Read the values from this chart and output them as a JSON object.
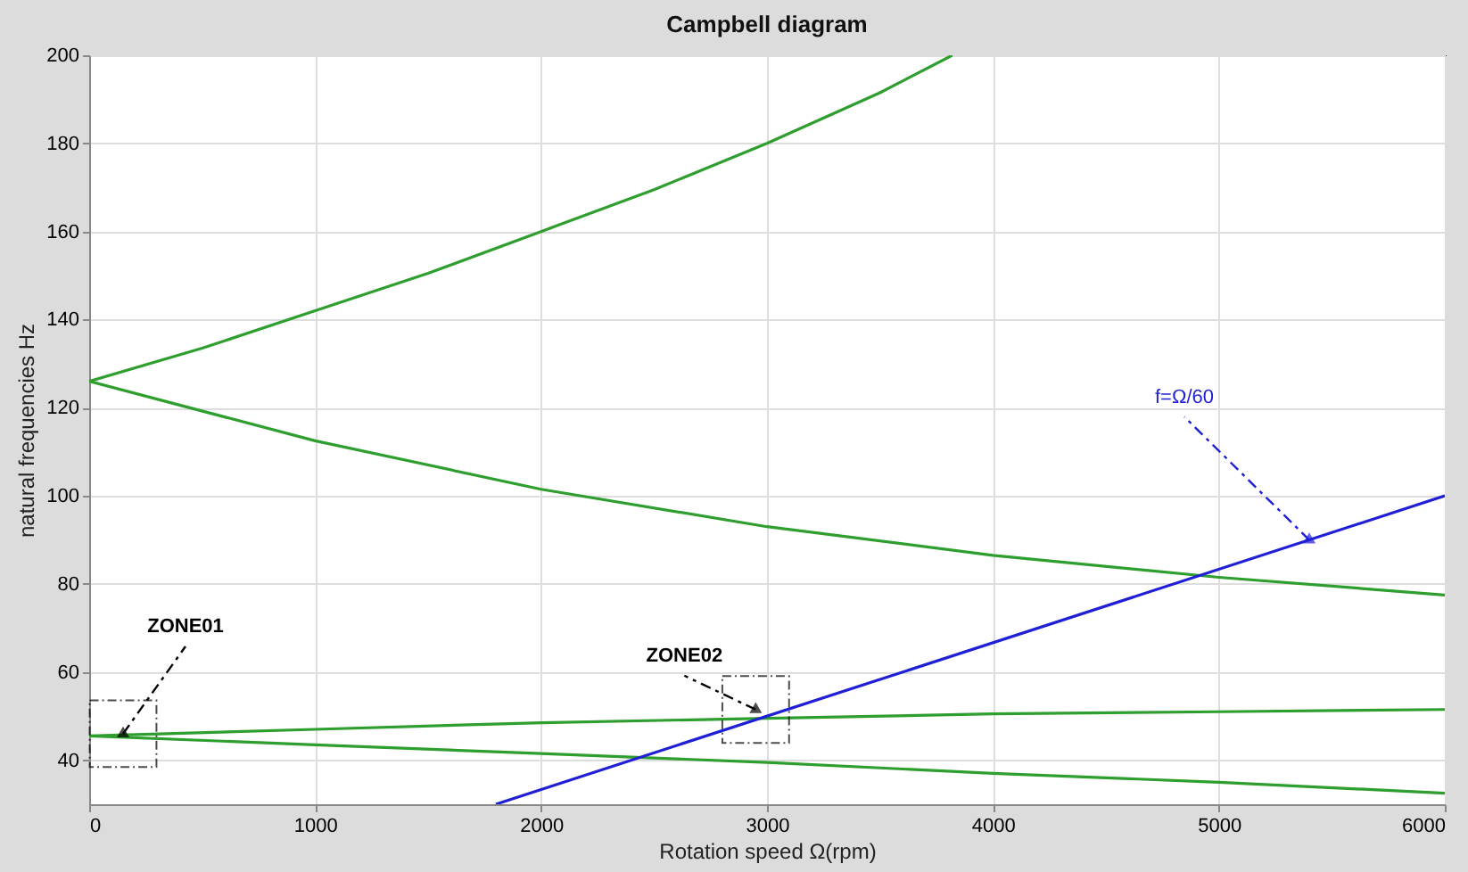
{
  "chart_data": {
    "type": "line",
    "title": "Campbell diagram",
    "xlabel": "Rotation speed Ω(rpm)",
    "ylabel": "natural frequencies Hz",
    "xlim": [
      0,
      6000
    ],
    "xticks": [
      0,
      1000,
      2000,
      3000,
      4000,
      5000,
      6000
    ],
    "ylim": [
      30,
      200
    ],
    "yticks": [
      40,
      60,
      80,
      100,
      120,
      140,
      160,
      180,
      200
    ],
    "grid": true,
    "legend": false,
    "line_style": "solid",
    "marker": "none",
    "series": [
      {
        "color": "#2e9e2e",
        "x": [
          0,
          500,
          1000,
          1500,
          2000,
          2500,
          3000,
          3500,
          3820
        ],
        "values": [
          126,
          133.5,
          142,
          150.5,
          160,
          169.5,
          180,
          191.5,
          200
        ]
      },
      {
        "color": "#2e9e2e",
        "x": [
          0,
          1000,
          2000,
          3000,
          4000,
          5000,
          6000
        ],
        "values": [
          126,
          112.5,
          101.5,
          93,
          86.5,
          81.5,
          77.5
        ]
      },
      {
        "color": "#2e9e2e",
        "x": [
          0,
          1000,
          2000,
          3000,
          4000,
          5000,
          6000
        ],
        "values": [
          45.5,
          47,
          48.5,
          49.5,
          50.5,
          51,
          51.5
        ]
      },
      {
        "color": "#2e9e2e",
        "x": [
          0,
          1000,
          2000,
          3000,
          4000,
          5000,
          6000
        ],
        "values": [
          45.5,
          43.5,
          41.5,
          39.5,
          37,
          35,
          32.5
        ]
      },
      {
        "color": "#1f1fd6",
        "x": [
          1800,
          6000
        ],
        "values": [
          30,
          100
        ]
      }
    ],
    "annotations": [
      {
        "text": "ZONE01",
        "x": 150,
        "y": 46
      },
      {
        "text": "ZONE02",
        "x": 2950,
        "y": 51.5
      },
      {
        "text": "f=Ω/60",
        "x": 5400,
        "y": 90
      }
    ]
  }
}
